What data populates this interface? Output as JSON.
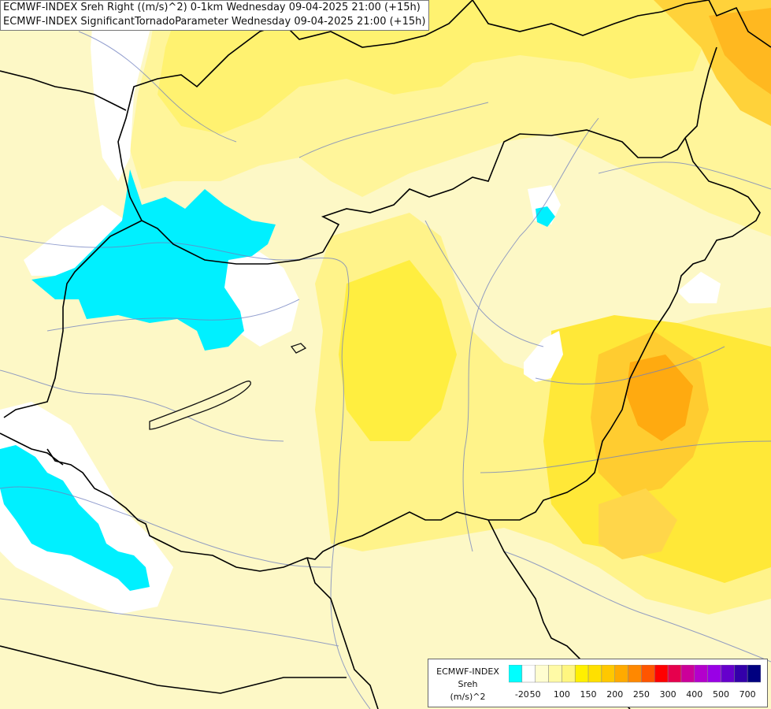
{
  "titles": [
    "ECMWF-INDEX Sreh Right ((m/s)^2) 0-1km Wednesday 09-04-2025 21:00 (+15h)",
    "ECMWF-INDEX SignificantTornadoParameter Wednesday 09-04-2025 21:00 (+15h)"
  ],
  "legend": {
    "model": "ECMWF-INDEX",
    "parameter": "Sreh",
    "unit": "(m/s)^2",
    "colors": [
      "#00ffff",
      "#ffffff",
      "#fffdd0",
      "#fffaa6",
      "#fff680",
      "#fff000",
      "#ffe000",
      "#ffc800",
      "#ffaa00",
      "#ff8800",
      "#ff5500",
      "#ff0000",
      "#e6004d",
      "#cc0099",
      "#b300cc",
      "#9900e6",
      "#6600cc",
      "#3300aa",
      "#000080"
    ],
    "ticks": [
      {
        "label": "-20",
        "bin": 1
      },
      {
        "label": "50",
        "bin": 2
      },
      {
        "label": "100",
        "bin": 4
      },
      {
        "label": "150",
        "bin": 6
      },
      {
        "label": "200",
        "bin": 8
      },
      {
        "label": "250",
        "bin": 10
      },
      {
        "label": "300",
        "bin": 12
      },
      {
        "label": "400",
        "bin": 14
      },
      {
        "label": "500",
        "bin": 16
      },
      {
        "label": "700",
        "bin": 18
      }
    ]
  },
  "field_colors": {
    "base": "#fdf8c6",
    "light_yellow": "#fff69a",
    "yellow": "#fff260",
    "strong_yellow": "#ffe800",
    "orange": "#ffcc33",
    "dark_orange": "#ffb000",
    "white": "#ffffff",
    "cyan": "#00f0ff"
  }
}
